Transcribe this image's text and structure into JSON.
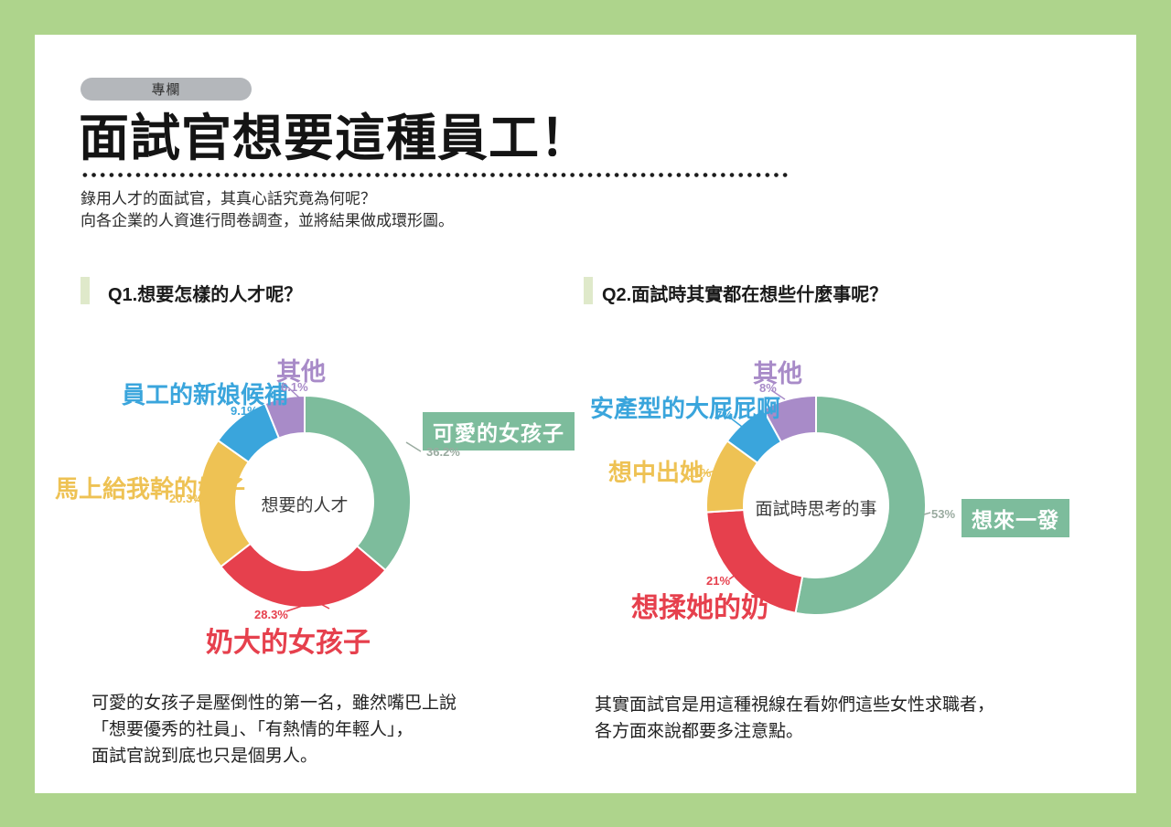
{
  "page": {
    "badge": "專欄",
    "title": "面試官想要這種員工！",
    "description_lines": [
      "錄用人才的面試官，其真心話究竟為何呢？",
      "向各企業的人資進行問卷調查，並將結果做成環形圖。"
    ],
    "colors": {
      "background": "#aed48c",
      "card": "#ffffff",
      "badge_bg": "#b4b7bb",
      "accent_bar": "#dfe9ca",
      "title_text": "#141414"
    }
  },
  "questions": [
    {
      "label": "Q1.想要怎樣的人才呢？"
    },
    {
      "label": "Q2.面試時其實都在想些什麼事呢？"
    }
  ],
  "chart_data": [
    {
      "type": "pie",
      "variant": "donut",
      "title": "Q1.想要怎樣的人才呢？",
      "center_label": "想要的人才",
      "start_angle_deg": 0,
      "direction": "clockwise",
      "segments": [
        {
          "label": "可愛的女孩子",
          "value": 36.2,
          "display": "36.2%",
          "color": "#7dbc9c",
          "pct_color": "#9aaba0",
          "highlighted": true
        },
        {
          "label": "奶大的女孩子",
          "value": 28.3,
          "display": "28.3%",
          "color": "#e6404d",
          "pct_color": "#e6404d",
          "highlighted": false
        },
        {
          "label": "馬上給我幹的妹子",
          "value": 20.3,
          "display": "20.3%",
          "color": "#eec254",
          "pct_color": "#eec254",
          "highlighted": false
        },
        {
          "label": "員工的新娘候補",
          "value": 9.1,
          "display": "9.1%",
          "color": "#3aa5dc",
          "pct_color": "#3aa5dc",
          "highlighted": false
        },
        {
          "label": "其他",
          "value": 6.1,
          "display": "6.1%",
          "color": "#a88bc8",
          "pct_color": "#a88bc8",
          "highlighted": false
        }
      ]
    },
    {
      "type": "pie",
      "variant": "donut",
      "title": "Q2.面試時其實都在想些什麼事呢？",
      "center_label": "面試時思考的事",
      "start_angle_deg": 0,
      "direction": "clockwise",
      "segments": [
        {
          "label": "想來一發",
          "value": 53,
          "display": "53%",
          "color": "#7dbc9c",
          "pct_color": "#9aaba0",
          "highlighted": true
        },
        {
          "label": "想揉她的奶",
          "value": 21,
          "display": "21%",
          "color": "#e6404d",
          "pct_color": "#e6404d",
          "highlighted": false
        },
        {
          "label": "想中出她",
          "value": 11,
          "display": "11%",
          "color": "#eec254",
          "pct_color": "#eec254",
          "highlighted": false
        },
        {
          "label": "安產型的大屁屁啊",
          "value": 7,
          "display": "7%",
          "color": "#3aa5dc",
          "pct_color": "#3aa5dc",
          "highlighted": false
        },
        {
          "label": "其他",
          "value": 8,
          "display": "8%",
          "color": "#a88bc8",
          "pct_color": "#a88bc8",
          "highlighted": false
        }
      ]
    }
  ],
  "footers": [
    {
      "lines": [
        "可愛的女孩子是壓倒性的第一名，雖然嘴巴上說",
        "「想要優秀的社員」、「有熱情的年輕人」，",
        "面試官說到底也只是個男人。"
      ]
    },
    {
      "lines": [
        "其實面試官是用這種視線在看妳們這些女性求職者，",
        "各方面來說都要多注意點。"
      ]
    }
  ]
}
